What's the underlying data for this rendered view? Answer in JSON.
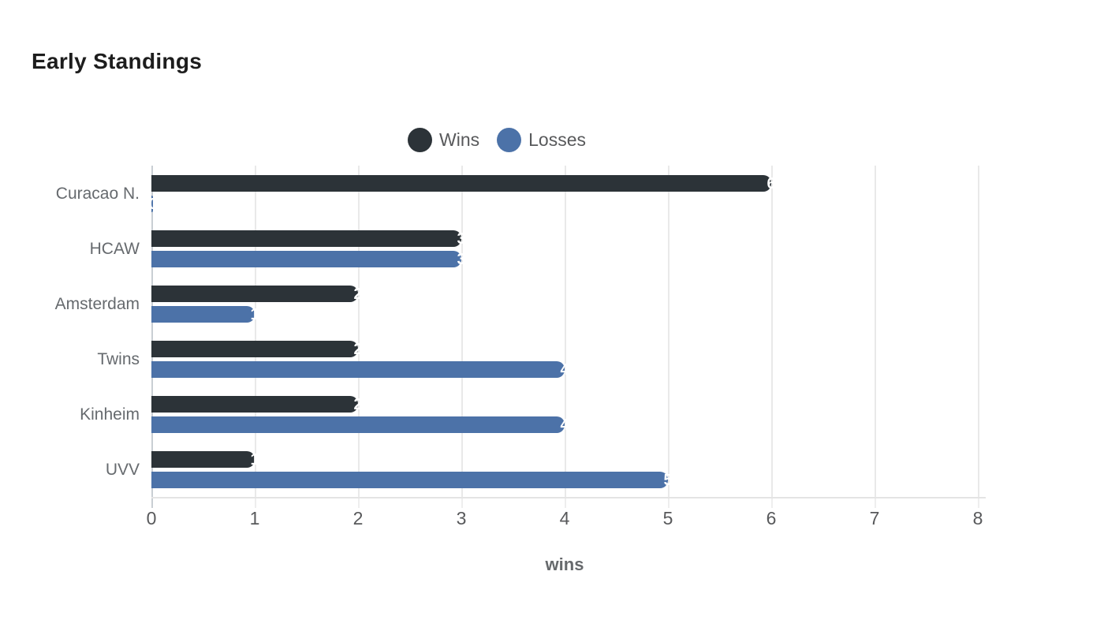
{
  "chart_data": {
    "type": "bar",
    "orientation": "horizontal",
    "title": "Early Standings",
    "categories": [
      "Curacao N.",
      "HCAW",
      "Amsterdam",
      "Twins",
      "Kinheim",
      "UVV"
    ],
    "series": [
      {
        "name": "Wins",
        "color": "#2c3338",
        "values": [
          6,
          3,
          2,
          2,
          2,
          1
        ]
      },
      {
        "name": "Losses",
        "color": "#4c72a8",
        "values": [
          0,
          3,
          1,
          4,
          4,
          5
        ]
      }
    ],
    "xlabel": "wins",
    "xlim": [
      0,
      8
    ],
    "xticks": [
      0,
      1,
      2,
      3,
      4,
      5,
      6,
      7,
      8
    ],
    "grid": true,
    "legend_position": "top",
    "bar_value_labels": true,
    "value_label_color": "#ffffff",
    "axis_tick_color": "#58595b",
    "gridline_color": "#e9e9e9"
  }
}
